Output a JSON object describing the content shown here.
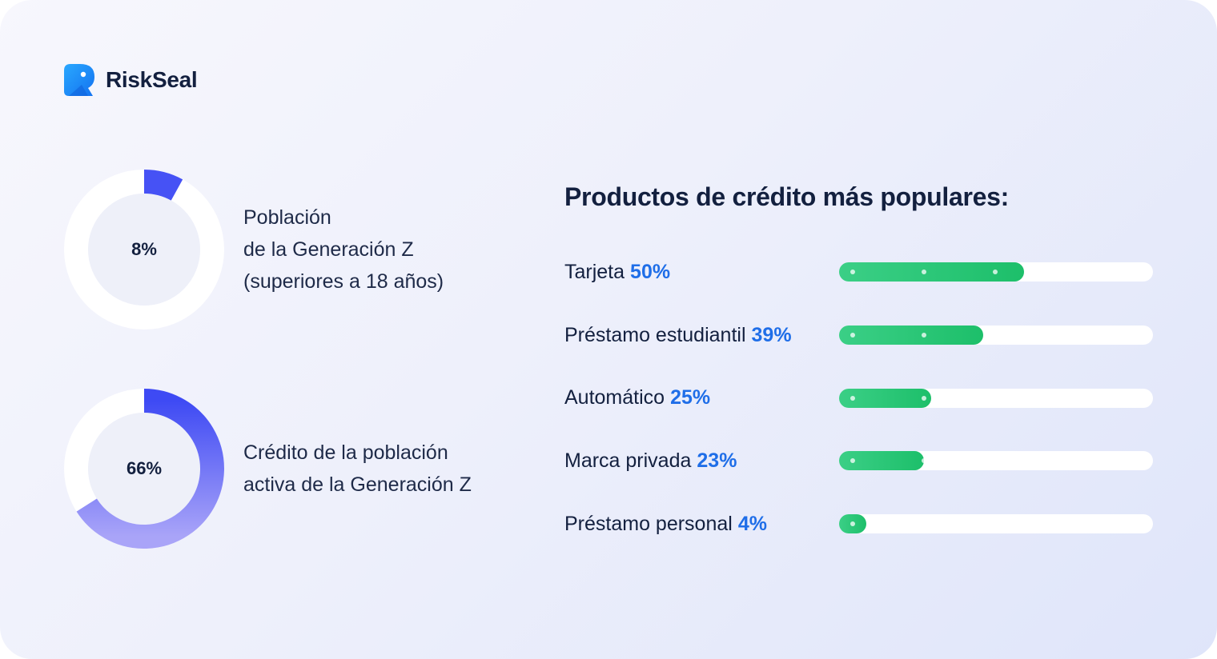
{
  "brand": {
    "name": "RiskSeal",
    "color": "#1f8bff"
  },
  "donuts": [
    {
      "value_text": "8%",
      "fraction": 0.08,
      "description_lines": [
        "Población",
        "de la Generación Z",
        "(superiores a 18 años)"
      ]
    },
    {
      "value_text": "66%",
      "fraction": 0.66,
      "description_lines": [
        "Crédito de la población",
        "activa de la Generación Z"
      ]
    }
  ],
  "chart_data": {
    "type": "bar",
    "orientation": "horizontal",
    "title": "Productos de crédito más populares:",
    "categories": [
      "Tarjeta",
      "Préstamo estudiantil",
      "Automático",
      "Marca privada",
      "Préstamo personal"
    ],
    "values": [
      50,
      39,
      25,
      23,
      4
    ],
    "value_labels": [
      "50%",
      "39%",
      "25%",
      "23%",
      "4%"
    ],
    "unit": "%",
    "xlim": [
      0,
      85
    ],
    "grid": false,
    "legend": "none",
    "colors": {
      "bar_fill": "#22c16f",
      "track": "#ffffff",
      "value_text": "#1f6ee8",
      "donut_arc": "#4652f5"
    }
  }
}
